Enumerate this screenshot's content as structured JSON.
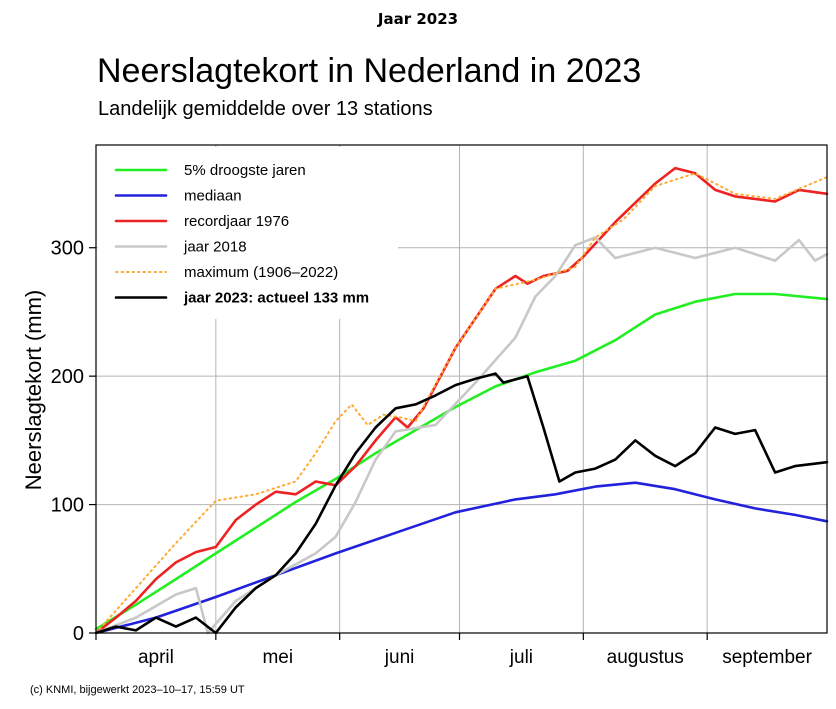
{
  "header": {
    "top_label": "Jaar 2023"
  },
  "chart_data": {
    "type": "line",
    "title": "Neerslagtekort in Nederland in 2023",
    "subtitle": "Landelijk gemiddelde over 13 stations",
    "ylabel": "Neerslagtekort (mm)",
    "xlabel": "",
    "ylim": [
      0,
      380
    ],
    "yticks": [
      0,
      100,
      200,
      300
    ],
    "x_unit": "dag (1 april = 0)",
    "xlim": [
      0,
      183
    ],
    "months": [
      {
        "label": "april",
        "start": 0,
        "end": 30
      },
      {
        "label": "mei",
        "start": 30,
        "end": 61
      },
      {
        "label": "juni",
        "start": 61,
        "end": 91
      },
      {
        "label": "juli",
        "start": 91,
        "end": 122
      },
      {
        "label": "augustus",
        "start": 122,
        "end": 153
      },
      {
        "label": "september",
        "start": 153,
        "end": 183
      }
    ],
    "legend_position": "top-left",
    "series": [
      {
        "name": "5% droogste jaren",
        "color": "#22ee22",
        "style": "solid",
        "points": [
          [
            0,
            3
          ],
          [
            10,
            22
          ],
          [
            20,
            42
          ],
          [
            30,
            62
          ],
          [
            40,
            82
          ],
          [
            50,
            102
          ],
          [
            60,
            120
          ],
          [
            70,
            140
          ],
          [
            80,
            158
          ],
          [
            90,
            176
          ],
          [
            100,
            192
          ],
          [
            110,
            203
          ],
          [
            120,
            212
          ],
          [
            130,
            228
          ],
          [
            140,
            248
          ],
          [
            150,
            258
          ],
          [
            160,
            264
          ],
          [
            170,
            264
          ],
          [
            183,
            260
          ]
        ]
      },
      {
        "name": "mediaan",
        "color": "#2222dd",
        "style": "solid",
        "points": [
          [
            0,
            0
          ],
          [
            15,
            12
          ],
          [
            30,
            28
          ],
          [
            45,
            45
          ],
          [
            60,
            62
          ],
          [
            75,
            78
          ],
          [
            90,
            94
          ],
          [
            105,
            104
          ],
          [
            115,
            108
          ],
          [
            125,
            114
          ],
          [
            135,
            117
          ],
          [
            145,
            112
          ],
          [
            155,
            104
          ],
          [
            165,
            97
          ],
          [
            175,
            92
          ],
          [
            183,
            87
          ]
        ]
      },
      {
        "name": "recordjaar 1976",
        "color": "#ee2222",
        "style": "solid",
        "points": [
          [
            0,
            0
          ],
          [
            5,
            12
          ],
          [
            10,
            25
          ],
          [
            15,
            42
          ],
          [
            20,
            55
          ],
          [
            25,
            63
          ],
          [
            30,
            67
          ],
          [
            35,
            88
          ],
          [
            40,
            100
          ],
          [
            45,
            110
          ],
          [
            50,
            108
          ],
          [
            55,
            118
          ],
          [
            60,
            115
          ],
          [
            65,
            130
          ],
          [
            70,
            150
          ],
          [
            75,
            168
          ],
          [
            78,
            160
          ],
          [
            82,
            175
          ],
          [
            90,
            222
          ],
          [
            100,
            268
          ],
          [
            105,
            278
          ],
          [
            108,
            272
          ],
          [
            112,
            278
          ],
          [
            118,
            282
          ],
          [
            122,
            293
          ],
          [
            130,
            320
          ],
          [
            140,
            350
          ],
          [
            145,
            362
          ],
          [
            150,
            358
          ],
          [
            155,
            345
          ],
          [
            160,
            340
          ],
          [
            170,
            336
          ],
          [
            176,
            345
          ],
          [
            183,
            342
          ]
        ]
      },
      {
        "name": "jaar 2018",
        "color": "#c8c8c8",
        "style": "solid",
        "points": [
          [
            0,
            0
          ],
          [
            10,
            12
          ],
          [
            20,
            30
          ],
          [
            25,
            35
          ],
          [
            28,
            0
          ],
          [
            35,
            25
          ],
          [
            45,
            45
          ],
          [
            55,
            62
          ],
          [
            60,
            75
          ],
          [
            65,
            102
          ],
          [
            70,
            135
          ],
          [
            75,
            157
          ],
          [
            85,
            162
          ],
          [
            95,
            195
          ],
          [
            105,
            230
          ],
          [
            110,
            262
          ],
          [
            115,
            278
          ],
          [
            120,
            302
          ],
          [
            125,
            308
          ],
          [
            130,
            292
          ],
          [
            140,
            300
          ],
          [
            150,
            292
          ],
          [
            160,
            300
          ],
          [
            170,
            290
          ],
          [
            176,
            306
          ],
          [
            180,
            290
          ],
          [
            183,
            295
          ]
        ]
      },
      {
        "name": "maximum (1906–2022)",
        "color": "#ffaa33",
        "style": "dotted",
        "points": [
          [
            0,
            0
          ],
          [
            10,
            35
          ],
          [
            20,
            70
          ],
          [
            30,
            103
          ],
          [
            40,
            108
          ],
          [
            50,
            118
          ],
          [
            55,
            140
          ],
          [
            60,
            165
          ],
          [
            64,
            178
          ],
          [
            68,
            162
          ],
          [
            72,
            170
          ],
          [
            76,
            168
          ],
          [
            80,
            165
          ],
          [
            90,
            222
          ],
          [
            100,
            268
          ],
          [
            110,
            275
          ],
          [
            120,
            285
          ],
          [
            125,
            308
          ],
          [
            132,
            322
          ],
          [
            140,
            348
          ],
          [
            150,
            358
          ],
          [
            160,
            342
          ],
          [
            170,
            338
          ],
          [
            183,
            355
          ]
        ]
      },
      {
        "name": "jaar 2023: actueel 133 mm",
        "color": "#000000",
        "style": "solid",
        "bold_label": true,
        "points": [
          [
            0,
            0
          ],
          [
            5,
            5
          ],
          [
            10,
            2
          ],
          [
            15,
            12
          ],
          [
            20,
            5
          ],
          [
            25,
            12
          ],
          [
            30,
            0
          ],
          [
            35,
            20
          ],
          [
            40,
            35
          ],
          [
            45,
            45
          ],
          [
            50,
            62
          ],
          [
            55,
            85
          ],
          [
            60,
            115
          ],
          [
            65,
            140
          ],
          [
            70,
            160
          ],
          [
            75,
            175
          ],
          [
            80,
            178
          ],
          [
            85,
            185
          ],
          [
            90,
            193
          ],
          [
            95,
            198
          ],
          [
            100,
            202
          ],
          [
            102,
            195
          ],
          [
            108,
            200
          ],
          [
            112,
            160
          ],
          [
            116,
            118
          ],
          [
            120,
            125
          ],
          [
            125,
            128
          ],
          [
            130,
            135
          ],
          [
            135,
            150
          ],
          [
            140,
            138
          ],
          [
            145,
            130
          ],
          [
            150,
            140
          ],
          [
            155,
            160
          ],
          [
            160,
            155
          ],
          [
            165,
            158
          ],
          [
            170,
            125
          ],
          [
            175,
            130
          ],
          [
            183,
            133
          ]
        ]
      }
    ]
  },
  "footer": {
    "credit": "(c) KNMI, bijgewerkt 2023–10–17, 15:59 UT"
  }
}
